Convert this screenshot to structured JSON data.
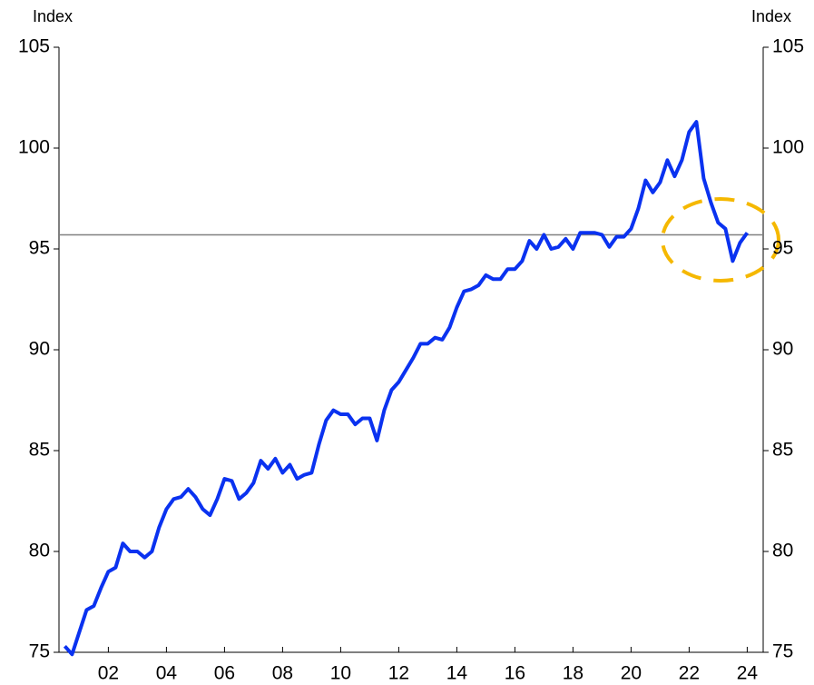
{
  "chart_data": {
    "type": "line",
    "y_label": "Index",
    "y2_label": "Index",
    "x": [
      2000.5,
      2000.75,
      2001,
      2001.25,
      2001.5,
      2001.75,
      2002,
      2002.25,
      2002.5,
      2002.75,
      2003,
      2003.25,
      2003.5,
      2003.75,
      2004,
      2004.25,
      2004.5,
      2004.75,
      2005,
      2005.25,
      2005.5,
      2005.75,
      2006,
      2006.25,
      2006.5,
      2006.75,
      2007,
      2007.25,
      2007.5,
      2007.75,
      2008,
      2008.25,
      2008.5,
      2008.75,
      2009,
      2009.25,
      2009.5,
      2009.75,
      2010,
      2010.25,
      2010.5,
      2010.75,
      2011,
      2011.25,
      2011.5,
      2011.75,
      2012,
      2012.25,
      2012.5,
      2012.75,
      2013,
      2013.25,
      2013.5,
      2013.75,
      2014,
      2014.25,
      2014.5,
      2014.75,
      2015,
      2015.25,
      2015.5,
      2015.75,
      2016,
      2016.25,
      2016.5,
      2016.75,
      2017,
      2017.25,
      2017.5,
      2017.75,
      2018,
      2018.25,
      2018.5,
      2018.75,
      2019,
      2019.25,
      2019.5,
      2019.75,
      2020,
      2020.25,
      2020.5,
      2020.75,
      2021,
      2021.25,
      2021.5,
      2021.75,
      2022,
      2022.25,
      2022.5,
      2022.75,
      2023,
      2023.25,
      2023.5,
      2023.75,
      2024
    ],
    "series": [
      {
        "color": "#0a32f0",
        "values": [
          75.3,
          74.9,
          76.0,
          77.1,
          77.3,
          78.2,
          79.0,
          79.2,
          80.4,
          80.0,
          80.0,
          79.7,
          80.0,
          81.2,
          82.1,
          82.6,
          82.7,
          83.1,
          82.7,
          82.1,
          81.8,
          82.6,
          83.6,
          83.5,
          82.6,
          82.9,
          83.4,
          84.5,
          84.1,
          84.6,
          83.9,
          84.3,
          83.6,
          83.8,
          83.9,
          85.3,
          86.5,
          87.0,
          86.8,
          86.8,
          86.3,
          86.6,
          86.6,
          85.5,
          87.0,
          88.0,
          88.4,
          89.0,
          89.6,
          90.3,
          90.3,
          90.6,
          90.5,
          91.1,
          92.1,
          92.9,
          93.0,
          93.2,
          93.7,
          93.5,
          93.5,
          94.0,
          94.0,
          94.4,
          95.4,
          95.0,
          95.7,
          95.0,
          95.1,
          95.5,
          95.0,
          95.8,
          95.8,
          95.8,
          95.7,
          95.1,
          95.6,
          95.6,
          96.0,
          97.0,
          98.4,
          97.8,
          98.3,
          99.4,
          98.6,
          99.4,
          100.8,
          101.3,
          98.5,
          97.3,
          96.3,
          96.0,
          94.4,
          95.3,
          95.8
        ]
      }
    ],
    "reference_line": 95.7,
    "reference_color": "#808080",
    "xlim": [
      2000.3,
      2024.55
    ],
    "xticks": [
      {
        "value": 2002,
        "label": "02"
      },
      {
        "value": 2004,
        "label": "04"
      },
      {
        "value": 2006,
        "label": "06"
      },
      {
        "value": 2008,
        "label": "08"
      },
      {
        "value": 2010,
        "label": "10"
      },
      {
        "value": 2012,
        "label": "12"
      },
      {
        "value": 2014,
        "label": "14"
      },
      {
        "value": 2016,
        "label": "16"
      },
      {
        "value": 2018,
        "label": "18"
      },
      {
        "value": 2020,
        "label": "20"
      },
      {
        "value": 2022,
        "label": "22"
      },
      {
        "value": 2024,
        "label": "24"
      }
    ],
    "ylim": [
      75,
      105
    ],
    "yticks": [
      75,
      80,
      85,
      90,
      95,
      100,
      105
    ],
    "y2lim": [
      75,
      105
    ],
    "y2ticks": [
      75,
      80,
      85,
      90,
      95,
      100,
      105
    ]
  }
}
